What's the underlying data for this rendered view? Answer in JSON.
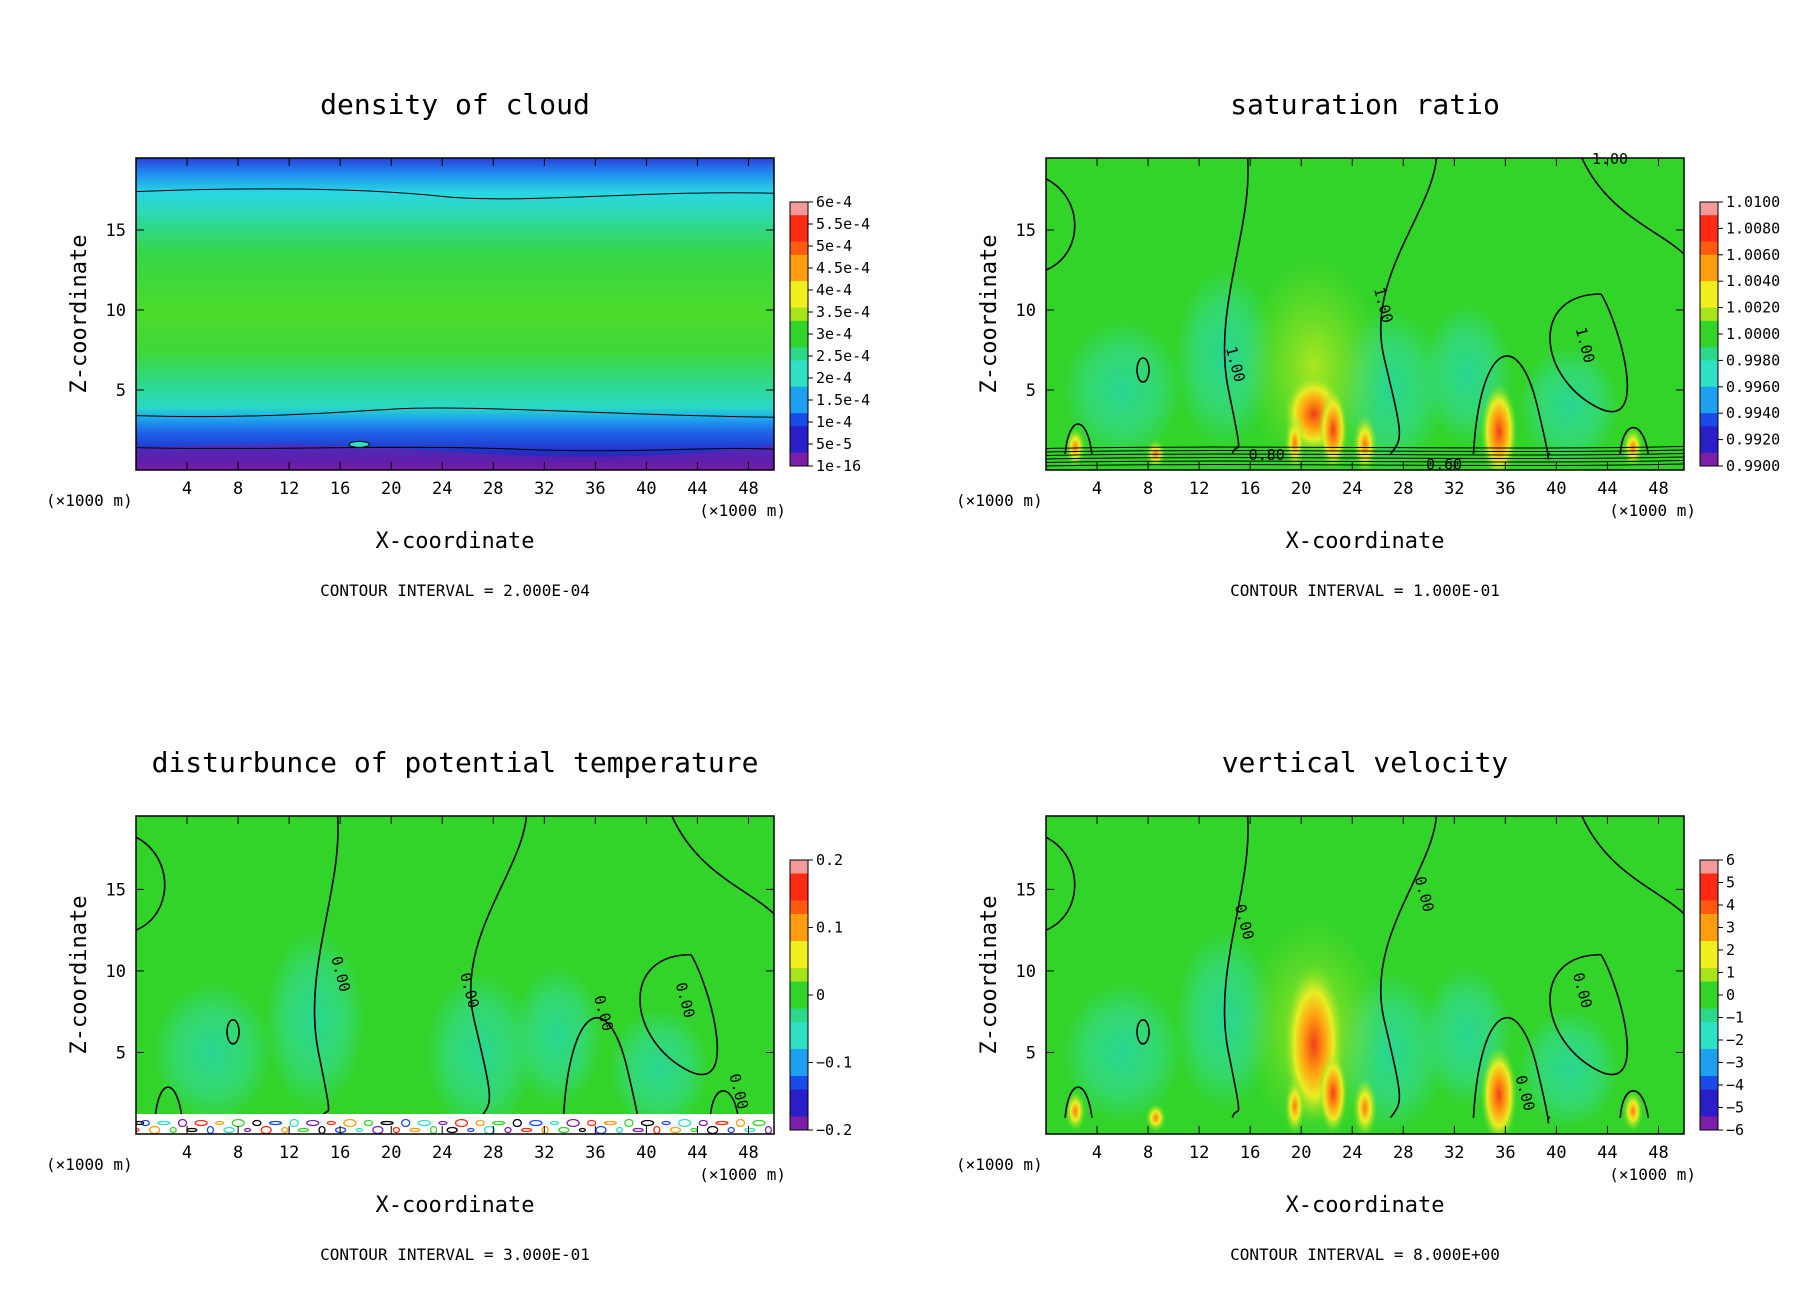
{
  "chart_data": [
    {
      "type": "heatmap",
      "title": "density of cloud",
      "xlabel": "X-coordinate",
      "ylabel": "Z-coordinate",
      "x_unit": "(×1000 m)",
      "z_unit": "(×1000 m)",
      "xlim": [
        0,
        50
      ],
      "ylim": [
        0,
        19.5
      ],
      "xticks": [
        4,
        8,
        12,
        16,
        20,
        24,
        28,
        32,
        36,
        40,
        44,
        48
      ],
      "yticks": [
        5,
        10,
        15
      ],
      "colorbar_labels": [
        "6e-4",
        "5.5e-4",
        "5e-4",
        "4.5e-4",
        "4e-4",
        "3.5e-4",
        "3e-4",
        "2.5e-4",
        "2e-4",
        "1.5e-4",
        "1e-4",
        "5e-5",
        "1e-16"
      ],
      "contour_labels": [],
      "contour_interval": "CONTOUR INTERVAL = 2.000E-04"
    },
    {
      "type": "heatmap",
      "title": "saturation ratio",
      "xlabel": "X-coordinate",
      "ylabel": "Z-coordinate",
      "x_unit": "(×1000 m)",
      "z_unit": "(×1000 m)",
      "xlim": [
        0,
        50
      ],
      "ylim": [
        0,
        19.5
      ],
      "xticks": [
        4,
        8,
        12,
        16,
        20,
        24,
        28,
        32,
        36,
        40,
        44,
        48
      ],
      "yticks": [
        5,
        10,
        15
      ],
      "colorbar_labels": [
        "1.0100",
        "1.0080",
        "1.0060",
        "1.0040",
        "1.0020",
        "1.0000",
        "0.9980",
        "0.9960",
        "0.9940",
        "0.9920",
        "0.9900"
      ],
      "contour_labels": [
        {
          "text": "1.00",
          "x": 44.2,
          "z": 19.4
        },
        {
          "text": "1.00",
          "x": 14.8,
          "z": 6.6
        },
        {
          "text": "1.00",
          "x": 26.4,
          "z": 10.3
        },
        {
          "text": "1.00",
          "x": 42.2,
          "z": 7.8
        },
        {
          "text": "0.80",
          "x": 17.3,
          "z": 0.9
        },
        {
          "text": "0.60",
          "x": 31.2,
          "z": 0.3
        }
      ],
      "contour_interval": "CONTOUR INTERVAL = 1.000E-01"
    },
    {
      "type": "heatmap",
      "title": "disturbunce of potential temperature",
      "xlabel": "X-coordinate",
      "ylabel": "Z-coordinate",
      "x_unit": "(×1000 m)",
      "z_unit": "(×1000 m)",
      "xlim": [
        0,
        50
      ],
      "ylim": [
        0,
        19.5
      ],
      "xticks": [
        4,
        8,
        12,
        16,
        20,
        24,
        28,
        32,
        36,
        40,
        44,
        48
      ],
      "yticks": [
        5,
        10,
        15
      ],
      "colorbar_labels": [
        "0.2",
        "0.1",
        "0",
        "−0.1",
        "−0.2"
      ],
      "contour_labels": [
        {
          "text": "0.00",
          "x": 16.0,
          "z": 9.8
        },
        {
          "text": "0.00",
          "x": 26.1,
          "z": 8.8
        },
        {
          "text": "0.00",
          "x": 36.6,
          "z": 7.4
        },
        {
          "text": "0.00",
          "x": 43.0,
          "z": 8.2
        },
        {
          "text": "0.00",
          "x": 47.2,
          "z": 2.6
        }
      ],
      "contour_interval": "CONTOUR INTERVAL = 3.000E-01"
    },
    {
      "type": "heatmap",
      "title": "vertical velocity",
      "xlabel": "X-coordinate",
      "ylabel": "Z-coordinate",
      "x_unit": "(×1000 m)",
      "z_unit": "(×1000 m)",
      "xlim": [
        0,
        50
      ],
      "ylim": [
        0,
        19.5
      ],
      "xticks": [
        4,
        8,
        12,
        16,
        20,
        24,
        28,
        32,
        36,
        40,
        44,
        48
      ],
      "yticks": [
        5,
        10,
        15
      ],
      "colorbar_labels": [
        "6",
        "5",
        "4",
        "3",
        "2",
        "1",
        "0",
        "−1",
        "−2",
        "−3",
        "−4",
        "−5",
        "−6"
      ],
      "contour_labels": [
        {
          "text": "0.00",
          "x": 15.5,
          "z": 13.0
        },
        {
          "text": "0.00",
          "x": 29.6,
          "z": 14.7
        },
        {
          "text": "0.00",
          "x": 42.0,
          "z": 8.8
        },
        {
          "text": "0.00",
          "x": 37.5,
          "z": 2.5
        }
      ],
      "contour_interval": "CONTOUR INTERVAL = 8.000E+00"
    }
  ],
  "colors": {
    "green": "#33d42a",
    "cyan": "#2ee0c4",
    "blue": "#1a4be8",
    "purple": "#7a1fa6",
    "red": "#ff2a14",
    "orange": "#ff9c10",
    "yellow": "#f0f01e",
    "pink": "#f49a9a"
  }
}
